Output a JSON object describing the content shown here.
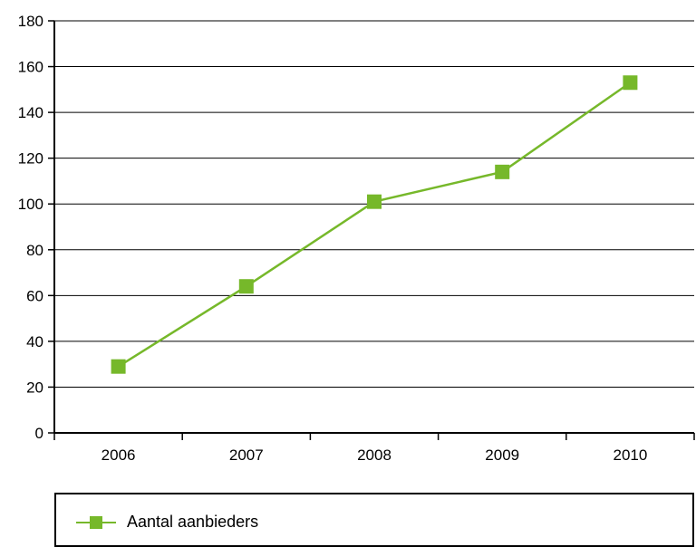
{
  "chart_data": {
    "type": "line",
    "title": "",
    "xlabel": "",
    "ylabel": "",
    "categories": [
      "2006",
      "2007",
      "2008",
      "2009",
      "2010"
    ],
    "ylim": [
      0,
      180
    ],
    "yticks": [
      0,
      20,
      40,
      60,
      80,
      100,
      120,
      140,
      160,
      180
    ],
    "grid": true,
    "legend_position": "bottom",
    "series": [
      {
        "name": "Aantal aanbieders",
        "values": [
          29,
          64,
          101,
          114,
          153
        ],
        "color": "#76b82a",
        "marker": "square"
      }
    ]
  },
  "legend": {
    "items": [
      {
        "label": "Aantal aanbieders",
        "color": "#76b82a"
      }
    ]
  }
}
